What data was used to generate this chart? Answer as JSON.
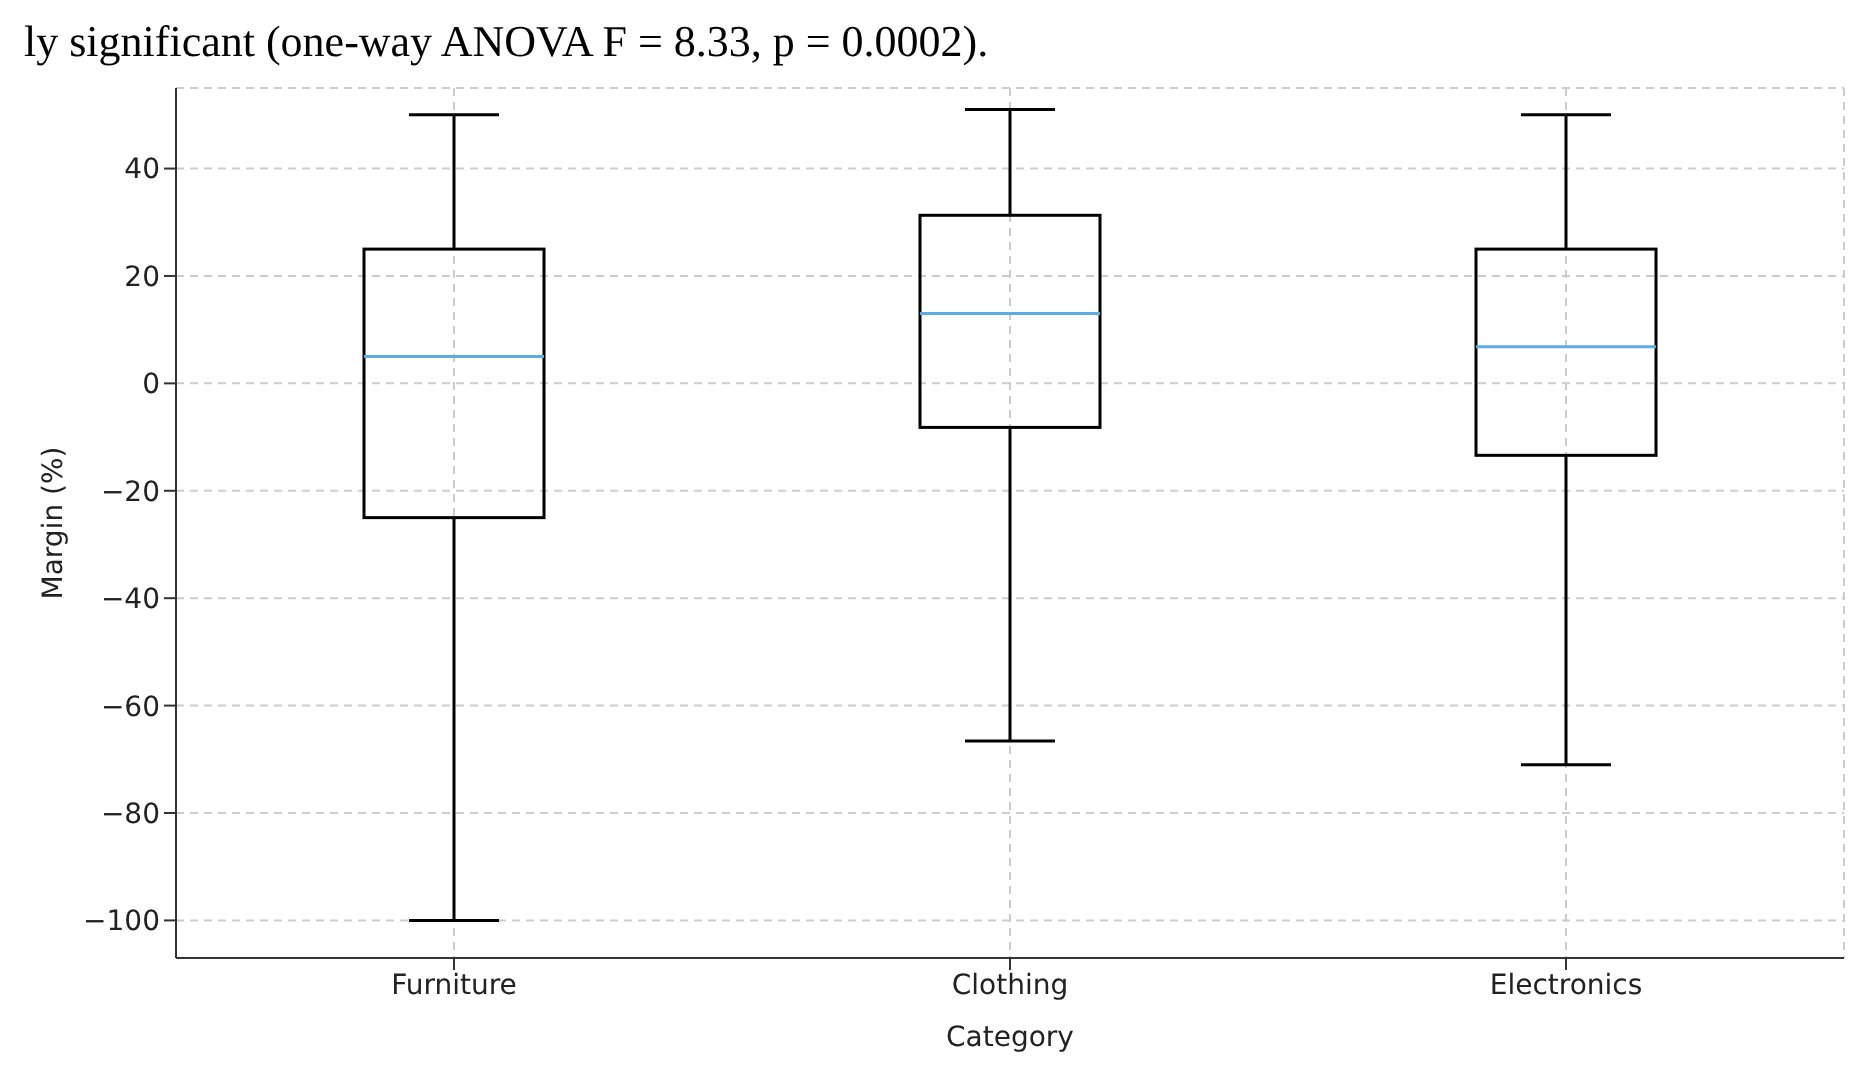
{
  "chart_data": {
    "type": "box",
    "title": "ly significant (one-way ANOVA F = 8.33, p = 0.0002).",
    "xlabel": "Category",
    "ylabel": "Margin (%)",
    "categories": [
      "Furniture",
      "Clothing",
      "Electronics"
    ],
    "series": [
      {
        "color": "#000000",
        "boxes": [
          {
            "low": -100,
            "q1": -25,
            "median": 5,
            "q3": 25,
            "high": 50
          },
          {
            "low": -66.6,
            "q1": -8.2,
            "median": 13,
            "q3": 31.3,
            "high": 51
          },
          {
            "low": -71,
            "q1": -13.4,
            "median": 6.8,
            "q3": 25,
            "high": 50
          }
        ]
      }
    ],
    "ylim": [
      -107,
      55
    ],
    "yticks": [
      -100,
      -80,
      -60,
      -40,
      -20,
      0,
      20,
      40
    ],
    "grid": true,
    "legend": false
  }
}
